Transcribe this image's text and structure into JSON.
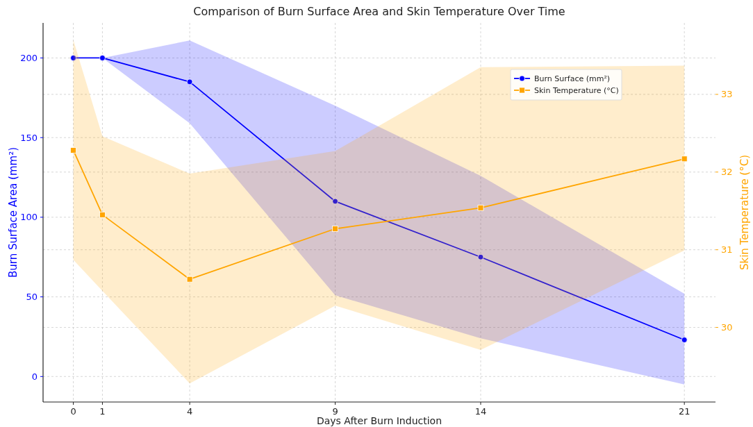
{
  "chart_data": {
    "type": "line",
    "title": "Comparison of Burn Surface Area and Skin Temperature Over Time",
    "xlabel": "Days After Burn Induction",
    "ylabel": "Burn Surface Area (mm²)",
    "y2label": "Skin Temperature (°C)",
    "x": [
      0,
      1,
      4,
      9,
      14,
      21
    ],
    "series": [
      {
        "name": "Burn Surface (mm²)",
        "color": "#0000ff",
        "marker": "circle",
        "values": [
          200,
          200,
          185,
          110,
          75,
          23
        ],
        "lower": [
          200,
          200,
          159,
          51,
          24,
          -5
        ],
        "upper": [
          200,
          200,
          211,
          170,
          126,
          52
        ]
      },
      {
        "name": "Skin Temperature (°C)",
        "color": "#ffa500",
        "marker": "square",
        "axis": "y2",
        "values": [
          32.28,
          31.45,
          30.62,
          31.27,
          31.54,
          32.17
        ],
        "lower": [
          30.87,
          30.47,
          29.28,
          30.28,
          29.71,
          30.99
        ],
        "upper": [
          33.7,
          32.46,
          31.98,
          32.27,
          33.35,
          33.37
        ]
      }
    ],
    "xlim": [
      -1.04,
      22.07
    ],
    "xticks": [
      0,
      1,
      4,
      9,
      14,
      21
    ],
    "ylim": [
      -16,
      222
    ],
    "yticks": [
      0,
      50,
      100,
      150,
      200
    ],
    "y2lim": [
      29.04,
      33.92
    ],
    "y2ticks": [
      30,
      31,
      32,
      33
    ],
    "grid": true,
    "legend": "top right",
    "line_style": "solid"
  }
}
